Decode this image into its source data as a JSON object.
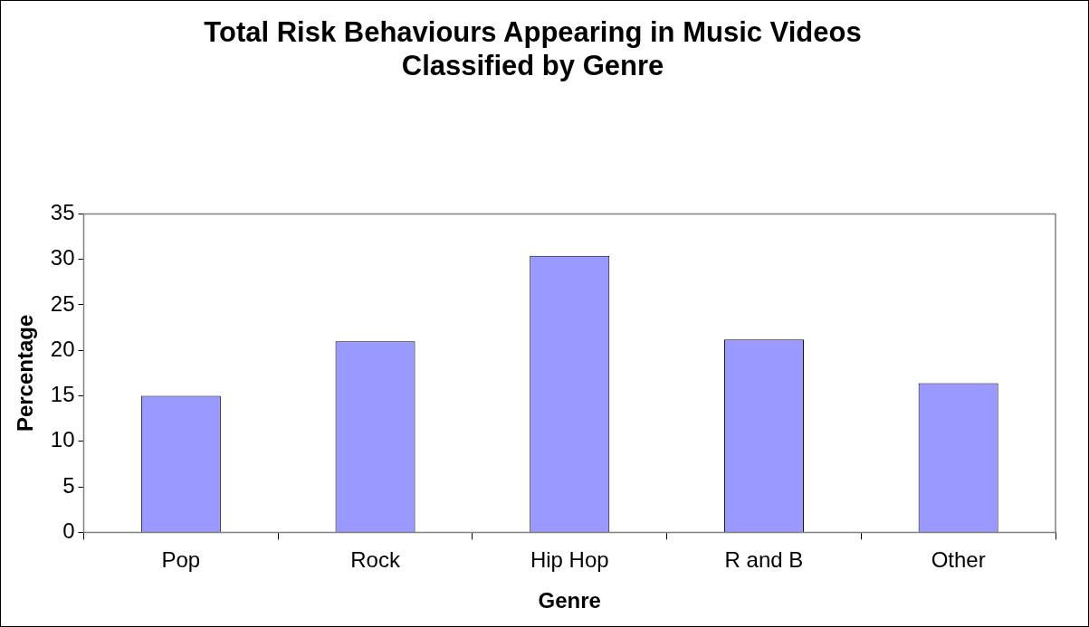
{
  "chart_data": {
    "type": "bar",
    "title": [
      "Total Risk Behaviours Appearing in Music Videos",
      "Classified by Genre"
    ],
    "xlabel": "Genre",
    "ylabel": "Percentage",
    "categories": [
      "Pop",
      "Rock",
      "Hip Hop",
      "R and B",
      "Other"
    ],
    "values": [
      15,
      21,
      30.4,
      21.2,
      16.4
    ],
    "color": "#9999ff",
    "ylim": [
      0,
      35
    ],
    "yticks": [
      0,
      5,
      10,
      15,
      20,
      25,
      30,
      35
    ],
    "grid": false,
    "legend": false
  }
}
